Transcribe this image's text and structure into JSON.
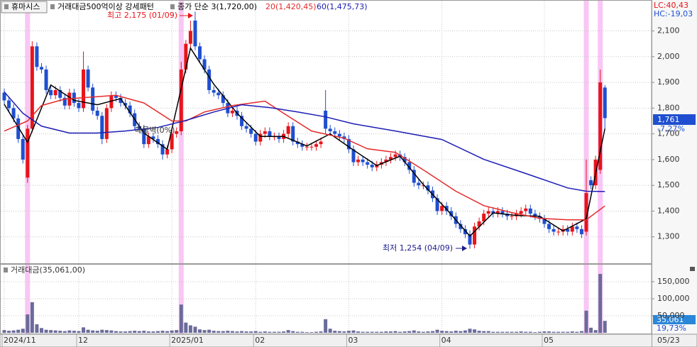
{
  "chart_data": [
    {
      "type": "candlestick",
      "title": "휴마시스",
      "subtitle": "거래대금500억이상 강세패턴",
      "open": [
        1860,
        1830,
        1800,
        1760,
        1680,
        1530,
        1720,
        2040,
        1960,
        1950,
        1870,
        1850,
        1870,
        1840,
        1810,
        1860,
        1820,
        1800,
        1950,
        1880,
        1790,
        1770,
        1680,
        1800,
        1850,
        1840,
        1820,
        1810,
        1780,
        1730,
        1720,
        1660,
        1690,
        1680,
        1660,
        1620,
        1640,
        1700,
        1710,
        1950,
        2050,
        2140,
        2040,
        1990,
        1950,
        1870,
        1860,
        1850,
        1820,
        1780,
        1790,
        1770,
        1730,
        1720,
        1700,
        1670,
        1700,
        1710,
        1690,
        1690,
        1680,
        1700,
        1730,
        1670,
        1660,
        1650,
        1650,
        1650,
        1660,
        1790,
        1720,
        1710,
        1700,
        1690,
        1680,
        1640,
        1590,
        1600,
        1590,
        1580,
        1570,
        1580,
        1590,
        1600,
        1610,
        1620,
        1610,
        1590,
        1560,
        1510,
        1500,
        1500,
        1480,
        1450,
        1400,
        1420,
        1400,
        1380,
        1350,
        1330,
        1310,
        1270,
        1340,
        1360,
        1390,
        1400,
        1390,
        1400,
        1390,
        1380,
        1380,
        1390,
        1400,
        1410,
        1390,
        1380,
        1370,
        1350,
        1330,
        1320,
        1320,
        1330,
        1320,
        1340,
        1330,
        1320,
        1520,
        1500,
        1560,
        1880
      ],
      "high": [
        1875,
        1845,
        1815,
        1775,
        1695,
        1735,
        2060,
        2055,
        1975,
        1965,
        1885,
        1885,
        1885,
        1855,
        1875,
        1875,
        1835,
        2020,
        1965,
        1895,
        1805,
        1785,
        1815,
        1865,
        1865,
        1855,
        1835,
        1825,
        1795,
        1745,
        1735,
        1705,
        1705,
        1695,
        1675,
        1655,
        1715,
        1725,
        1980,
        2065,
        2140,
        2175,
        2055,
        2005,
        1965,
        1885,
        1875,
        1865,
        1835,
        1805,
        1805,
        1785,
        1745,
        1735,
        1715,
        1715,
        1725,
        1725,
        1705,
        1705,
        1715,
        1745,
        1745,
        1685,
        1675,
        1665,
        1665,
        1675,
        1685,
        1870,
        1735,
        1725,
        1715,
        1705,
        1695,
        1655,
        1615,
        1615,
        1605,
        1595,
        1595,
        1605,
        1615,
        1625,
        1635,
        1635,
        1625,
        1605,
        1575,
        1525,
        1515,
        1515,
        1495,
        1465,
        1435,
        1435,
        1415,
        1395,
        1365,
        1345,
        1325,
        1355,
        1375,
        1405,
        1415,
        1415,
        1415,
        1415,
        1405,
        1395,
        1405,
        1415,
        1425,
        1425,
        1405,
        1395,
        1385,
        1365,
        1345,
        1335,
        1345,
        1345,
        1355,
        1355,
        1345,
        1600,
        1535,
        1615,
        1950,
        1890
      ],
      "low": [
        1815,
        1785,
        1745,
        1665,
        1585,
        1510,
        1705,
        1945,
        1935,
        1855,
        1835,
        1835,
        1825,
        1795,
        1795,
        1805,
        1785,
        1785,
        1865,
        1775,
        1755,
        1660,
        1665,
        1785,
        1825,
        1805,
        1795,
        1765,
        1715,
        1705,
        1645,
        1645,
        1665,
        1645,
        1600,
        1605,
        1625,
        1685,
        1695,
        1935,
        2035,
        2025,
        1975,
        1935,
        1855,
        1845,
        1835,
        1805,
        1765,
        1765,
        1755,
        1715,
        1705,
        1685,
        1655,
        1655,
        1685,
        1675,
        1675,
        1665,
        1665,
        1685,
        1655,
        1645,
        1635,
        1635,
        1635,
        1635,
        1645,
        1700,
        1695,
        1685,
        1675,
        1665,
        1625,
        1575,
        1575,
        1575,
        1565,
        1555,
        1555,
        1565,
        1575,
        1585,
        1595,
        1595,
        1575,
        1545,
        1495,
        1485,
        1485,
        1465,
        1435,
        1385,
        1385,
        1385,
        1365,
        1335,
        1315,
        1295,
        1254,
        1255,
        1325,
        1345,
        1375,
        1375,
        1375,
        1375,
        1365,
        1365,
        1365,
        1375,
        1385,
        1375,
        1365,
        1355,
        1335,
        1315,
        1305,
        1305,
        1305,
        1305,
        1305,
        1315,
        1295,
        1305,
        1485,
        1485,
        1545,
        1720
      ],
      "close": [
        1830,
        1800,
        1760,
        1680,
        1600,
        1720,
        2040,
        1960,
        1950,
        1870,
        1850,
        1870,
        1840,
        1810,
        1860,
        1820,
        1800,
        1950,
        1880,
        1790,
        1770,
        1680,
        1800,
        1850,
        1840,
        1820,
        1810,
        1780,
        1730,
        1720,
        1660,
        1690,
        1680,
        1660,
        1620,
        1640,
        1700,
        1710,
        1950,
        2050,
        2100,
        2040,
        1990,
        1950,
        1870,
        1860,
        1850,
        1820,
        1780,
        1790,
        1770,
        1730,
        1720,
        1700,
        1670,
        1700,
        1710,
        1690,
        1690,
        1680,
        1700,
        1730,
        1670,
        1660,
        1650,
        1650,
        1650,
        1660,
        1670,
        1720,
        1710,
        1700,
        1690,
        1680,
        1640,
        1590,
        1600,
        1590,
        1580,
        1570,
        1580,
        1590,
        1600,
        1610,
        1620,
        1610,
        1590,
        1560,
        1510,
        1500,
        1500,
        1480,
        1450,
        1400,
        1420,
        1400,
        1380,
        1350,
        1330,
        1310,
        1270,
        1340,
        1360,
        1390,
        1400,
        1390,
        1400,
        1390,
        1380,
        1380,
        1390,
        1400,
        1410,
        1390,
        1380,
        1370,
        1350,
        1330,
        1320,
        1320,
        1330,
        1320,
        1340,
        1330,
        1310,
        1470,
        1500,
        1600,
        1900,
        1761
      ],
      "up_color": "#e8141b",
      "down_color": "#1f4fd0",
      "series": [
        {
          "name": "종가 단순 3(1,720,00)",
          "color": "#000000",
          "x": [
            0,
            5,
            10,
            15,
            20,
            25,
            30,
            35,
            40,
            45,
            50,
            55,
            60,
            65,
            70,
            75,
            80,
            85,
            90,
            95,
            100,
            105,
            110,
            115,
            120,
            125,
            129
          ],
          "values": [
            1815,
            1667,
            1890,
            1830,
            1813,
            1837,
            1703,
            1640,
            2033,
            1893,
            1780,
            1690,
            1690,
            1653,
            1700,
            1637,
            1577,
            1613,
            1503,
            1407,
            1303,
            1393,
            1383,
            1380,
            1323,
            1370,
            1720
          ]
        },
        {
          "name": "20(1,420,45)",
          "color": "#e52a2a",
          "x": [
            0,
            5,
            8,
            13,
            24,
            30,
            36,
            39,
            43,
            49,
            56,
            60,
            66,
            73,
            78,
            84,
            90,
            97,
            103,
            109,
            115,
            121,
            125,
            129
          ],
          "values": [
            1711,
            1750,
            1810,
            1835,
            1850,
            1820,
            1750,
            1750,
            1785,
            1810,
            1827,
            1780,
            1711,
            1683,
            1642,
            1628,
            1560,
            1477,
            1421,
            1394,
            1372,
            1366,
            1366,
            1420
          ]
        },
        {
          "name": "60(1,475,73)",
          "color": "#1c1cb4",
          "x": [
            0,
            4,
            8,
            14,
            20,
            26,
            33,
            39,
            45,
            51,
            57,
            63,
            69,
            75,
            84,
            94,
            103,
            112,
            121,
            125,
            129
          ],
          "values": [
            1863,
            1780,
            1730,
            1703,
            1703,
            1711,
            1725,
            1752,
            1785,
            1813,
            1802,
            1785,
            1766,
            1739,
            1711,
            1678,
            1601,
            1546,
            1490,
            1477,
            1476
          ]
        }
      ],
      "highlights": [
        5,
        38,
        125,
        128
      ],
      "highlight_color": "#f9c6f5",
      "ylim": [
        1200,
        2220
      ],
      "yticks": [
        {
          "value": 1300,
          "label": "1,300"
        },
        {
          "value": 1400,
          "label": "1,400"
        },
        {
          "value": 1500,
          "label": "1,500"
        },
        {
          "value": 1600,
          "label": "1,600"
        },
        {
          "value": 1700,
          "label": "1,700"
        },
        {
          "value": 1800,
          "label": "1,800"
        },
        {
          "value": 1900,
          "label": "1,900"
        },
        {
          "value": 2000,
          "label": "2,000"
        },
        {
          "value": 2100,
          "label": "2,100"
        }
      ],
      "grid": true,
      "annotations": [
        "최고 2,175 (01/09)",
        "최저 1,254 (04/09)",
        "매물벽(0%)"
      ],
      "price_label": "1,761",
      "change_label": "-7,27%",
      "lc_label": "LC:40,43",
      "hc_label": "HC:-19,03"
    },
    {
      "type": "bar",
      "title": "거래대금(35,061,00)",
      "categories": [
        "2024/11",
        null,
        null,
        null,
        null,
        null,
        null,
        null,
        null,
        null,
        null,
        null,
        null,
        null,
        null,
        null,
        "12",
        null,
        null,
        null,
        null,
        null,
        null,
        null,
        null,
        null,
        null,
        null,
        null,
        null,
        null,
        null,
        null,
        null,
        null,
        null,
        "2025/01",
        null,
        null,
        null,
        null,
        null,
        null,
        null,
        null,
        null,
        null,
        null,
        null,
        null,
        null,
        null,
        null,
        null,
        "02",
        null,
        null,
        null,
        null,
        null,
        null,
        null,
        null,
        null,
        null,
        null,
        null,
        null,
        null,
        null,
        null,
        null,
        null,
        null,
        "03",
        null,
        null,
        null,
        null,
        null,
        null,
        null,
        null,
        null,
        null,
        null,
        null,
        null,
        null,
        null,
        null,
        null,
        null,
        null,
        "04",
        null,
        null,
        null,
        null,
        null,
        null,
        null,
        null,
        null,
        null,
        null,
        null,
        null,
        null,
        null,
        null,
        null,
        null,
        null,
        null,
        null,
        "05",
        null,
        null,
        null,
        null,
        null,
        null,
        null,
        null,
        null,
        null,
        null,
        null,
        "05/23"
      ],
      "values": [
        8000,
        6000,
        7000,
        9000,
        12000,
        54000,
        90000,
        25000,
        14000,
        9000,
        8000,
        7000,
        6000,
        5000,
        7000,
        6000,
        5000,
        16000,
        9000,
        7000,
        6000,
        9000,
        8000,
        7000,
        5000,
        4000,
        4000,
        5000,
        6000,
        5000,
        6000,
        4000,
        4000,
        5000,
        6000,
        5000,
        7000,
        8000,
        83000,
        30000,
        22000,
        18000,
        10000,
        8000,
        9000,
        6000,
        5000,
        5000,
        6000,
        5000,
        4000,
        5000,
        4000,
        4000,
        5000,
        3000,
        4000,
        3000,
        3000,
        3000,
        4000,
        8000,
        5000,
        3000,
        3000,
        2000,
        2000,
        3000,
        4000,
        40000,
        12000,
        6000,
        5000,
        4000,
        6000,
        7000,
        4000,
        3000,
        3000,
        3000,
        3000,
        3000,
        4000,
        4000,
        5000,
        3000,
        4000,
        5000,
        7000,
        4000,
        3000,
        4000,
        5000,
        9000,
        6000,
        5000,
        4000,
        6000,
        5000,
        7000,
        12000,
        10000,
        6000,
        5000,
        5000,
        3000,
        3000,
        3000,
        3000,
        3000,
        3000,
        4000,
        3000,
        3000,
        2000,
        3000,
        4000,
        4000,
        3000,
        3000,
        3000,
        3000,
        4000,
        3000,
        5000,
        65000,
        15000,
        8000,
        173000,
        35061
      ],
      "color": "#6b6b9b",
      "ylim": [
        0,
        198000
      ],
      "yticks": [
        {
          "value": 50000,
          "label": "50,000"
        },
        {
          "value": 100000,
          "label": "100,000"
        },
        {
          "value": 150000,
          "label": "150,000"
        }
      ],
      "grid": true,
      "last_label": "35,061",
      "change_label": "19,73%"
    }
  ]
}
